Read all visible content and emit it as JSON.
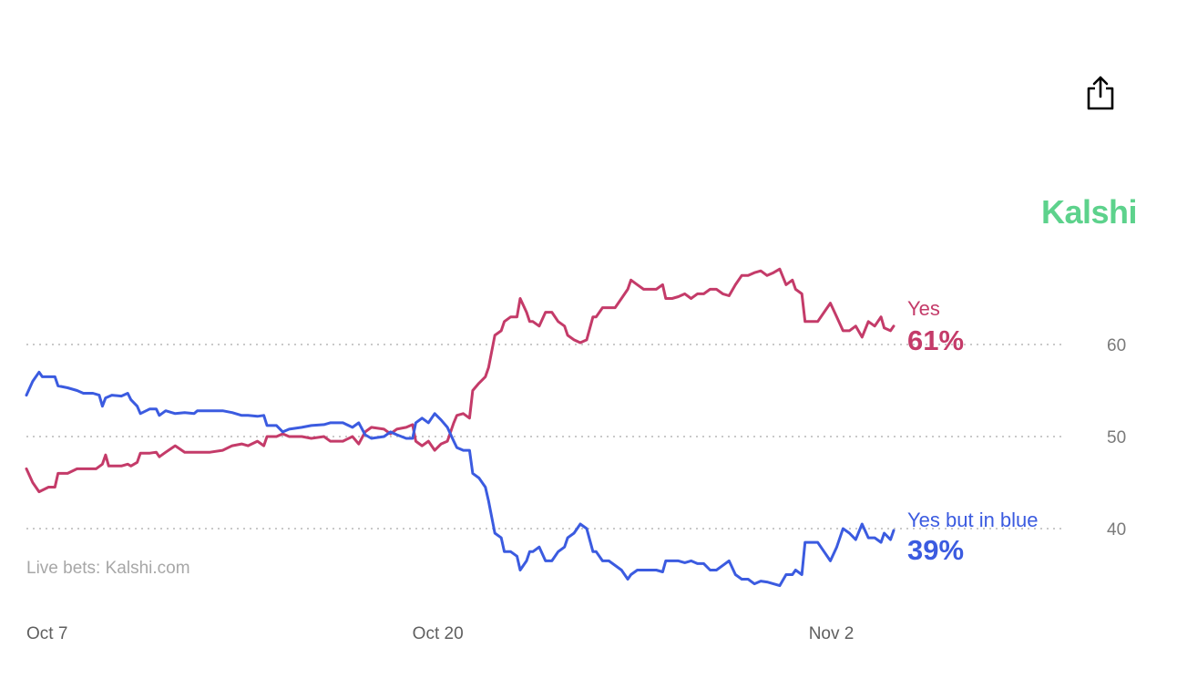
{
  "brand": {
    "name": "Kalshi",
    "color": "#5dd28c"
  },
  "share": {
    "icon": "share-icon"
  },
  "source_label": "Live bets: Kalshi.com",
  "chart_data": {
    "type": "line",
    "title": "",
    "xlabel": "",
    "ylabel": "",
    "ylim": [
      33,
      72
    ],
    "yticks": [
      {
        "value": 60,
        "label": "60"
      },
      {
        "value": 50,
        "label": "50"
      },
      {
        "value": 40,
        "label": "40"
      }
    ],
    "xticks": [
      {
        "value": 0,
        "label": "Oct 7"
      },
      {
        "value": 13,
        "label": "Oct 20"
      },
      {
        "value": 26,
        "label": "Nov 2"
      }
    ],
    "grid": "horizontal dotted",
    "series": [
      {
        "name": "Yes",
        "current_label": "61%",
        "color": "#c43b69",
        "points": [
          [
            0,
            46.5
          ],
          [
            0.2,
            45
          ],
          [
            0.4,
            44
          ],
          [
            0.7,
            44.5
          ],
          [
            0.9,
            44.5
          ],
          [
            1.0,
            46
          ],
          [
            1.3,
            46
          ],
          [
            1.6,
            46.5
          ],
          [
            1.9,
            46.5
          ],
          [
            2.2,
            46.5
          ],
          [
            2.4,
            47
          ],
          [
            2.5,
            48
          ],
          [
            2.6,
            46.8
          ],
          [
            3.0,
            46.8
          ],
          [
            3.2,
            47
          ],
          [
            3.3,
            46.8
          ],
          [
            3.5,
            47.2
          ],
          [
            3.6,
            48.2
          ],
          [
            3.9,
            48.2
          ],
          [
            4.1,
            48.3
          ],
          [
            4.2,
            47.8
          ],
          [
            4.4,
            48.3
          ],
          [
            4.7,
            49
          ],
          [
            5.0,
            48.3
          ],
          [
            5.4,
            48.3
          ],
          [
            5.8,
            48.3
          ],
          [
            6.2,
            48.5
          ],
          [
            6.5,
            49
          ],
          [
            6.8,
            49.2
          ],
          [
            7.0,
            49
          ],
          [
            7.3,
            49.5
          ],
          [
            7.5,
            49
          ],
          [
            7.6,
            50
          ],
          [
            7.9,
            50
          ],
          [
            8.1,
            50.3
          ],
          [
            8.3,
            50
          ],
          [
            8.7,
            50
          ],
          [
            9.0,
            49.8
          ],
          [
            9.4,
            50
          ],
          [
            9.6,
            49.5
          ],
          [
            10.0,
            49.5
          ],
          [
            10.3,
            50
          ],
          [
            10.5,
            49.2
          ],
          [
            10.7,
            50.5
          ],
          [
            10.9,
            51
          ],
          [
            11.3,
            50.8
          ],
          [
            11.5,
            50.3
          ],
          [
            11.7,
            50.8
          ],
          [
            12.0,
            51
          ],
          [
            12.2,
            51.3
          ],
          [
            12.3,
            49.5
          ],
          [
            12.5,
            49
          ],
          [
            12.7,
            49.5
          ],
          [
            12.9,
            48.5
          ],
          [
            13.1,
            49.2
          ],
          [
            13.3,
            49.5
          ],
          [
            13.5,
            51.5
          ],
          [
            13.6,
            52.3
          ],
          [
            13.8,
            52.5
          ],
          [
            14.0,
            52
          ],
          [
            14.1,
            55
          ],
          [
            14.3,
            55.8
          ],
          [
            14.5,
            56.5
          ],
          [
            14.6,
            57.5
          ],
          [
            14.8,
            61
          ],
          [
            15.0,
            61.5
          ],
          [
            15.1,
            62.5
          ],
          [
            15.3,
            63
          ],
          [
            15.5,
            63
          ],
          [
            15.6,
            65
          ],
          [
            15.8,
            63.5
          ],
          [
            15.9,
            62.5
          ],
          [
            16.0,
            62.5
          ],
          [
            16.2,
            62
          ],
          [
            16.4,
            63.5
          ],
          [
            16.6,
            63.5
          ],
          [
            16.8,
            62.5
          ],
          [
            17.0,
            62
          ],
          [
            17.1,
            61
          ],
          [
            17.3,
            60.5
          ],
          [
            17.5,
            60.2
          ],
          [
            17.7,
            60.5
          ],
          [
            17.9,
            63
          ],
          [
            18.0,
            63
          ],
          [
            18.2,
            64
          ],
          [
            18.4,
            64
          ],
          [
            18.6,
            64
          ],
          [
            18.8,
            65
          ],
          [
            19.0,
            66
          ],
          [
            19.1,
            67
          ],
          [
            19.3,
            66.5
          ],
          [
            19.5,
            66
          ],
          [
            19.7,
            66
          ],
          [
            19.9,
            66
          ],
          [
            20.1,
            66.5
          ],
          [
            20.2,
            65
          ],
          [
            20.4,
            65
          ],
          [
            20.6,
            65.2
          ],
          [
            20.8,
            65.5
          ],
          [
            21.0,
            65
          ],
          [
            21.2,
            65.5
          ],
          [
            21.4,
            65.5
          ],
          [
            21.6,
            66
          ],
          [
            21.8,
            66
          ],
          [
            22.0,
            65.5
          ],
          [
            22.2,
            65.3
          ],
          [
            22.4,
            66.5
          ],
          [
            22.6,
            67.5
          ],
          [
            22.8,
            67.5
          ],
          [
            23.0,
            67.8
          ],
          [
            23.2,
            68
          ],
          [
            23.4,
            67.5
          ],
          [
            23.6,
            67.8
          ],
          [
            23.8,
            68.2
          ],
          [
            24.0,
            66.5
          ],
          [
            24.2,
            67
          ],
          [
            24.3,
            66
          ],
          [
            24.5,
            65.5
          ],
          [
            24.6,
            62.5
          ],
          [
            24.8,
            62.5
          ],
          [
            25.0,
            62.5
          ],
          [
            25.2,
            63.5
          ],
          [
            25.4,
            64.5
          ],
          [
            25.6,
            63
          ],
          [
            25.8,
            61.5
          ],
          [
            26.0,
            61.5
          ],
          [
            26.2,
            62
          ],
          [
            26.4,
            60.8
          ],
          [
            26.6,
            62.5
          ],
          [
            26.8,
            62
          ],
          [
            27.0,
            63
          ],
          [
            27.1,
            61.8
          ],
          [
            27.3,
            61.5
          ],
          [
            27.4,
            62
          ]
        ]
      },
      {
        "name": "Yes but in blue",
        "current_label": "39%",
        "color": "#3b5be0",
        "points": [
          [
            0,
            54.5
          ],
          [
            0.2,
            56
          ],
          [
            0.4,
            57
          ],
          [
            0.5,
            56.5
          ],
          [
            0.8,
            56.5
          ],
          [
            0.9,
            56.5
          ],
          [
            1.0,
            55.5
          ],
          [
            1.3,
            55.3
          ],
          [
            1.6,
            55
          ],
          [
            1.8,
            54.7
          ],
          [
            2.1,
            54.7
          ],
          [
            2.3,
            54.5
          ],
          [
            2.4,
            53.3
          ],
          [
            2.5,
            54.2
          ],
          [
            2.7,
            54.5
          ],
          [
            3.0,
            54.4
          ],
          [
            3.2,
            54.7
          ],
          [
            3.3,
            54
          ],
          [
            3.5,
            53.3
          ],
          [
            3.6,
            52.5
          ],
          [
            3.9,
            53
          ],
          [
            4.1,
            53
          ],
          [
            4.2,
            52.3
          ],
          [
            4.4,
            52.8
          ],
          [
            4.7,
            52.5
          ],
          [
            5.0,
            52.6
          ],
          [
            5.3,
            52.5
          ],
          [
            5.4,
            52.8
          ],
          [
            5.8,
            52.8
          ],
          [
            6.2,
            52.8
          ],
          [
            6.5,
            52.6
          ],
          [
            6.8,
            52.3
          ],
          [
            7.0,
            52.3
          ],
          [
            7.3,
            52.2
          ],
          [
            7.5,
            52.3
          ],
          [
            7.6,
            51.2
          ],
          [
            7.9,
            51.2
          ],
          [
            8.1,
            50.5
          ],
          [
            8.3,
            50.8
          ],
          [
            8.7,
            51
          ],
          [
            9.0,
            51.2
          ],
          [
            9.4,
            51.3
          ],
          [
            9.6,
            51.5
          ],
          [
            10.0,
            51.5
          ],
          [
            10.3,
            51
          ],
          [
            10.5,
            51.5
          ],
          [
            10.7,
            50.2
          ],
          [
            10.9,
            49.8
          ],
          [
            11.3,
            50
          ],
          [
            11.5,
            50.5
          ],
          [
            11.7,
            50.2
          ],
          [
            12.0,
            49.8
          ],
          [
            12.2,
            49.8
          ],
          [
            12.3,
            51.5
          ],
          [
            12.5,
            52
          ],
          [
            12.7,
            51.5
          ],
          [
            12.9,
            52.5
          ],
          [
            13.1,
            51.8
          ],
          [
            13.3,
            51
          ],
          [
            13.5,
            49.5
          ],
          [
            13.6,
            48.8
          ],
          [
            13.8,
            48.5
          ],
          [
            14.0,
            48.5
          ],
          [
            14.1,
            46
          ],
          [
            14.3,
            45.5
          ],
          [
            14.5,
            44.5
          ],
          [
            14.6,
            43
          ],
          [
            14.8,
            39.5
          ],
          [
            15.0,
            39
          ],
          [
            15.1,
            37.5
          ],
          [
            15.3,
            37.5
          ],
          [
            15.5,
            37
          ],
          [
            15.6,
            35.5
          ],
          [
            15.8,
            36.5
          ],
          [
            15.9,
            37.5
          ],
          [
            16.0,
            37.5
          ],
          [
            16.2,
            38
          ],
          [
            16.4,
            36.5
          ],
          [
            16.6,
            36.5
          ],
          [
            16.8,
            37.5
          ],
          [
            17.0,
            38
          ],
          [
            17.1,
            39
          ],
          [
            17.3,
            39.5
          ],
          [
            17.5,
            40.5
          ],
          [
            17.7,
            40
          ],
          [
            17.9,
            37.5
          ],
          [
            18.0,
            37.5
          ],
          [
            18.2,
            36.5
          ],
          [
            18.4,
            36.5
          ],
          [
            18.6,
            36
          ],
          [
            18.8,
            35.5
          ],
          [
            19.0,
            34.5
          ],
          [
            19.1,
            35
          ],
          [
            19.3,
            35.5
          ],
          [
            19.5,
            35.5
          ],
          [
            19.7,
            35.5
          ],
          [
            19.9,
            35.5
          ],
          [
            20.1,
            35.3
          ],
          [
            20.2,
            36.5
          ],
          [
            20.4,
            36.5
          ],
          [
            20.6,
            36.5
          ],
          [
            20.8,
            36.3
          ],
          [
            21.0,
            36.5
          ],
          [
            21.2,
            36.2
          ],
          [
            21.4,
            36.2
          ],
          [
            21.6,
            35.5
          ],
          [
            21.8,
            35.5
          ],
          [
            22.0,
            36
          ],
          [
            22.2,
            36.5
          ],
          [
            22.4,
            35
          ],
          [
            22.6,
            34.5
          ],
          [
            22.8,
            34.5
          ],
          [
            23.0,
            34
          ],
          [
            23.2,
            34.3
          ],
          [
            23.4,
            34.2
          ],
          [
            23.6,
            34
          ],
          [
            23.8,
            33.8
          ],
          [
            24.0,
            35
          ],
          [
            24.2,
            35
          ],
          [
            24.3,
            35.5
          ],
          [
            24.5,
            35
          ],
          [
            24.6,
            38.5
          ],
          [
            24.8,
            38.5
          ],
          [
            25.0,
            38.5
          ],
          [
            25.2,
            37.5
          ],
          [
            25.4,
            36.5
          ],
          [
            25.6,
            38
          ],
          [
            25.8,
            40
          ],
          [
            26.0,
            39.5
          ],
          [
            26.2,
            38.8
          ],
          [
            26.4,
            40.5
          ],
          [
            26.6,
            39
          ],
          [
            26.8,
            39
          ],
          [
            27.0,
            38.5
          ],
          [
            27.1,
            39.5
          ],
          [
            27.3,
            38.8
          ],
          [
            27.4,
            39.8
          ]
        ]
      }
    ]
  }
}
